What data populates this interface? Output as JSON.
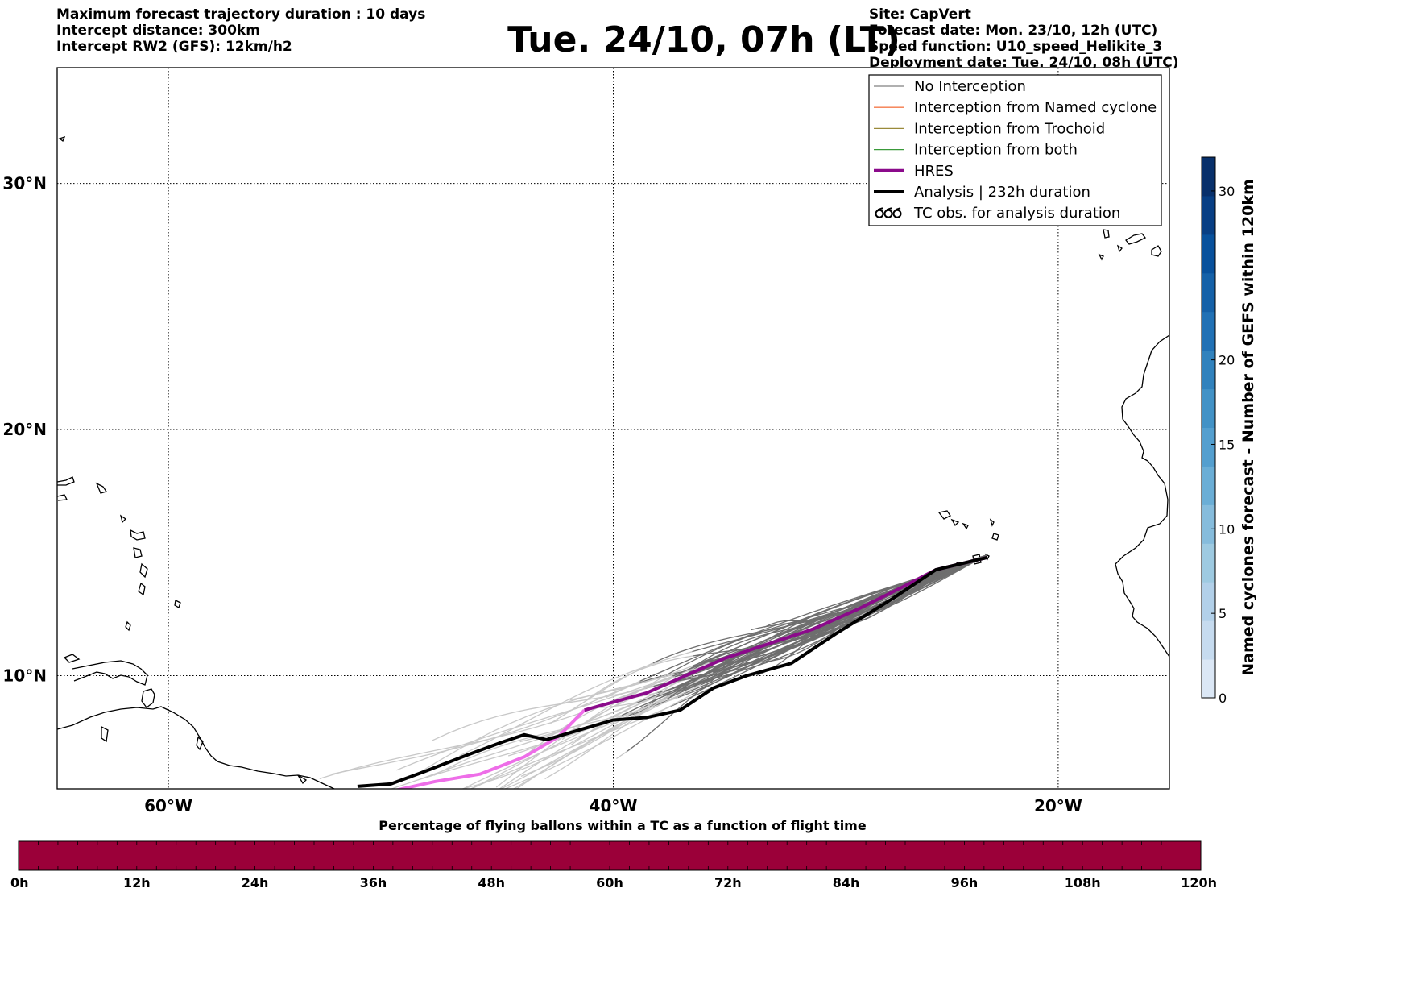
{
  "header": {
    "left_lines": [
      "Maximum forecast trajectory duration : 10 days",
      "Intercept distance: 300km",
      "Intercept RW2 (GFS):  12km/h2"
    ],
    "title": "Tue. 24/10, 07h (LT)",
    "right_lines": [
      "Site: CapVert",
      "Forecast date: Mon. 23/10, 12h (UTC)",
      "Speed function: U10_speed_Helikite_3",
      "Deployment date: Tue. 24/10, 08h (UTC)"
    ]
  },
  "map": {
    "lon_range": [
      -65,
      -15
    ],
    "lat_range": [
      5.4,
      34.7
    ],
    "meridian_labels": [
      {
        "lon": -60,
        "label": "60°W"
      },
      {
        "lon": -40,
        "label": "40°W"
      },
      {
        "lon": -20,
        "label": "20°W"
      }
    ],
    "parallel_labels": [
      {
        "lat": 30,
        "label": "30°N"
      },
      {
        "lat": 20,
        "label": "20°N"
      },
      {
        "lat": 10,
        "label": "10°N"
      }
    ],
    "site": {
      "name": "CapVert",
      "lon": -23.2,
      "lat": 14.9
    }
  },
  "legend": {
    "entries": [
      {
        "label": "No Interception",
        "color": "#808080",
        "style": "thin"
      },
      {
        "label": "Interception from Named cyclone",
        "color": "#f47a4a",
        "style": "thin"
      },
      {
        "label": "Interception from Trochoid",
        "color": "#9a8a3a",
        "style": "thin"
      },
      {
        "label": "Interception from both",
        "color": "#3a9a3a",
        "style": "thin"
      },
      {
        "label": "HRES",
        "color": "#8b0a8b",
        "style": "thick"
      },
      {
        "label": "Analysis | 232h duration",
        "color": "#000000",
        "style": "thick"
      },
      {
        "label": "TC obs. for analysis duration",
        "color": "#000000",
        "style": "cyclone"
      }
    ]
  },
  "colorbar_right": {
    "label": "Named cyclones forecast - Number of GEFS within 120km",
    "min": 0,
    "max": 32,
    "ticks": [
      0,
      5,
      10,
      15,
      20,
      30
    ],
    "colors": [
      "#dbe7f5",
      "#c6dbef",
      "#b2d0e9",
      "#9ecae1",
      "#86bcdc",
      "#6baed6",
      "#549fcf",
      "#4292c6",
      "#3182bd",
      "#2171b5",
      "#1561a8",
      "#08519c",
      "#083f84",
      "#08306b"
    ]
  },
  "colorbar_bottom": {
    "title": "Percentage of flying ballons within a TC as a function of flight time",
    "color": "#9b0039",
    "ticks": [
      "0h",
      "12h",
      "24h",
      "36h",
      "48h",
      "60h",
      "72h",
      "84h",
      "96h",
      "108h",
      "120h"
    ]
  },
  "chart_data": {
    "type": "line",
    "title": "Tue. 24/10, 07h (LT)",
    "xlabel": "",
    "ylabel": "",
    "xlim": [
      -65,
      -15
    ],
    "ylim": [
      5.4,
      34.7
    ],
    "grid": true,
    "legend_position": "top-right",
    "series": [
      {
        "name": "HRES",
        "color": "#8b0a8b",
        "late_color": "#ee6ee8",
        "lon": [
          -23.2,
          -25.5,
          -27,
          -29,
          -31,
          -33,
          -35,
          -37,
          -38.5,
          -40.5,
          -41.3,
          -42.5,
          -44,
          -46,
          -48,
          -50
        ],
        "lat": [
          14.8,
          14.3,
          13.6,
          12.7,
          11.9,
          11.3,
          10.7,
          9.9,
          9.3,
          8.8,
          8.6,
          7.5,
          6.7,
          6.0,
          5.7,
          5.3
        ]
      },
      {
        "name": "Analysis | 232h duration",
        "color": "#000000",
        "lon": [
          -23.2,
          -25.5,
          -27.5,
          -30,
          -32,
          -34,
          -35.5,
          -37,
          -38.5,
          -40,
          -41.5,
          -43,
          -44,
          -45,
          -46.5,
          -48.5,
          -50,
          -51.5
        ],
        "lat": [
          14.8,
          14.3,
          13.1,
          11.7,
          10.5,
          10.0,
          9.5,
          8.6,
          8.3,
          8.2,
          7.8,
          7.4,
          7.6,
          7.3,
          6.8,
          6.1,
          5.6,
          5.5
        ]
      }
    ]
  }
}
